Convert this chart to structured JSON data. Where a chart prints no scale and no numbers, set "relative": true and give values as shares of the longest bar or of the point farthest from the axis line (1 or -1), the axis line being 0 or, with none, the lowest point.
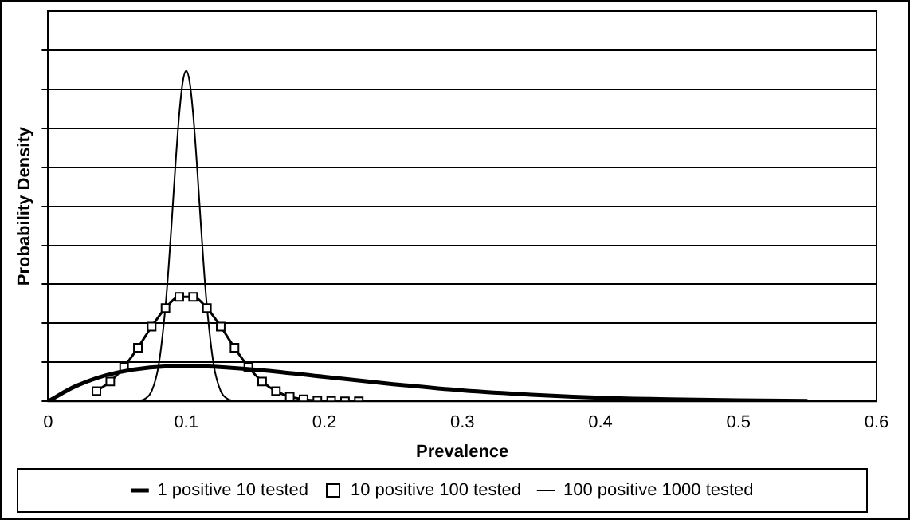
{
  "chart_data": {
    "type": "line",
    "xlabel": "Prevalence",
    "ylabel": "Probability Density",
    "relative": true,
    "xlim": [
      0,
      0.6
    ],
    "xticks": [
      0,
      0.1,
      0.2,
      0.3,
      0.4,
      0.5,
      0.6
    ],
    "grid": "y",
    "legend": "bottom",
    "series": [
      {
        "name": "1 positive 10 tested",
        "color": "#000000",
        "marker": "none",
        "x": [
          0,
          0.02,
          0.05,
          0.1,
          0.15,
          0.2,
          0.25,
          0.3,
          0.35,
          0.4,
          0.45,
          0.5,
          0.55
        ],
        "values": [
          0,
          0.046,
          0.087,
          0.107,
          0.096,
          0.074,
          0.052,
          0.033,
          0.02,
          0.011,
          0.006,
          0.003,
          0.001
        ]
      },
      {
        "name": "10 positive 100 tested",
        "color": "#000000",
        "marker": "square",
        "x": [
          0.035,
          0.045,
          0.055,
          0.065,
          0.075,
          0.085,
          0.095,
          0.105,
          0.115,
          0.125,
          0.135,
          0.145,
          0.155,
          0.165,
          0.175,
          0.185,
          0.195,
          0.205,
          0.215,
          0.225
        ],
        "values": [
          0.031,
          0.06,
          0.104,
          0.162,
          0.226,
          0.282,
          0.316,
          0.316,
          0.282,
          0.226,
          0.162,
          0.104,
          0.06,
          0.031,
          0.014,
          0.006,
          0.002,
          0.001,
          0,
          0
        ]
      },
      {
        "name": "100 positive 1000 tested",
        "color": "#000000",
        "marker": "none",
        "x": [
          0.065,
          0.07,
          0.075,
          0.08,
          0.085,
          0.0875,
          0.09,
          0.0925,
          0.095,
          0.0975,
          0.1,
          0.1025,
          0.105,
          0.1075,
          0.11,
          0.1125,
          0.115,
          0.12,
          0.125,
          0.13,
          0.135
        ],
        "values": [
          0.001,
          0.007,
          0.031,
          0.108,
          0.287,
          0.42,
          0.574,
          0.732,
          0.87,
          0.966,
          1,
          0.966,
          0.87,
          0.732,
          0.574,
          0.42,
          0.287,
          0.108,
          0.031,
          0.007,
          0.001
        ]
      }
    ]
  }
}
